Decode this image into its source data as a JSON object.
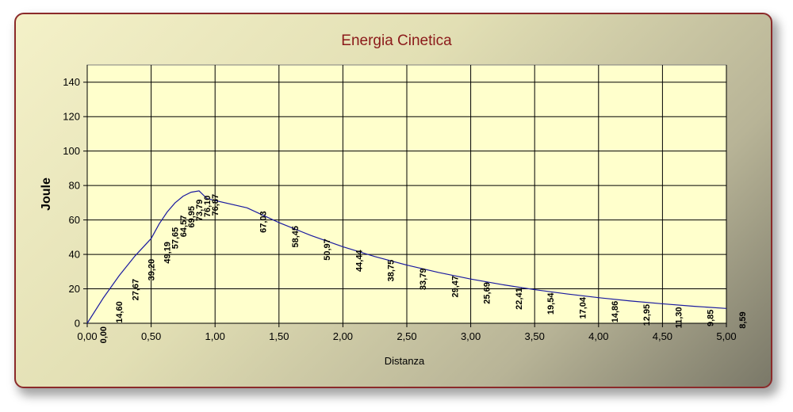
{
  "chart_data": {
    "type": "line",
    "title": "Energia Cinetica",
    "xlabel": "Distanza",
    "ylabel": "Joule",
    "xlim": [
      0,
      5
    ],
    "ylim": [
      0,
      150
    ],
    "x_ticks": [
      "0,00",
      "0,50",
      "1,00",
      "1,50",
      "2,00",
      "2,50",
      "3,00",
      "3,50",
      "4,00",
      "4,50",
      "5,00"
    ],
    "y_ticks": [
      "0",
      "20",
      "40",
      "60",
      "80",
      "100",
      "120",
      "140"
    ],
    "grid": true,
    "legend": "none",
    "line_color": "#1a1aa0",
    "plot_background": "#ffffcc",
    "x": [
      0,
      0.125,
      0.25,
      0.375,
      0.5,
      0.5625,
      0.625,
      0.6875,
      0.75,
      0.8125,
      0.875,
      0.9375,
      1.25,
      1.5,
      1.75,
      2.0,
      2.25,
      2.5,
      2.75,
      3.0,
      3.25,
      3.5,
      3.75,
      4.0,
      4.25,
      4.5,
      4.75,
      5.0
    ],
    "values": [
      0,
      14.6,
      27.67,
      39.2,
      49.19,
      57.65,
      64.57,
      69.95,
      73.79,
      76.1,
      76.87,
      72.35,
      67.03,
      58.45,
      50.97,
      44.44,
      38.75,
      33.79,
      29.47,
      25.69,
      22.41,
      19.54,
      17.04,
      14.86,
      12.95,
      11.3,
      9.85,
      8.59
    ],
    "data_labels": [
      "0,00",
      "14,60",
      "27,67",
      "39,20",
      "49,19",
      "57,65",
      "64,57",
      "69,95",
      "73,79",
      "76,10",
      "76,87",
      "",
      "67,03",
      "58,45",
      "50,97",
      "44,44",
      "38,75",
      "33,79",
      "29,47",
      "25,69",
      "22,41",
      "19,54",
      "17,04",
      "14,86",
      "12,95",
      "11,30",
      "9,85",
      "8,59"
    ]
  }
}
